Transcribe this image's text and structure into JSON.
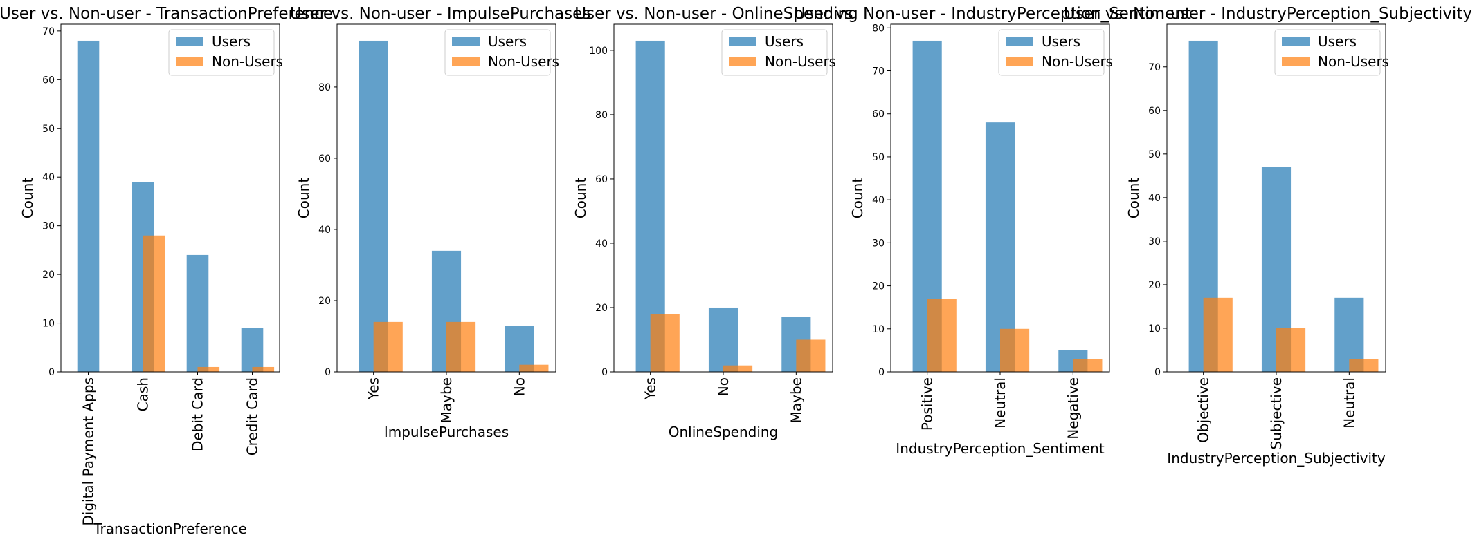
{
  "series_colors": {
    "users": "#1f77b4",
    "non_users": "#ff7f0e"
  },
  "chart_data": [
    {
      "type": "bar",
      "title": "User vs. Non-user - TransactionPreference",
      "xlabel": "TransactionPreference",
      "ylabel": "Count",
      "categories": [
        "Digital Payment Apps",
        "Cash",
        "Debit Card",
        "Credit Card"
      ],
      "series": [
        {
          "name": "Users",
          "values": [
            68,
            39,
            24,
            9
          ]
        },
        {
          "name": "Non-Users",
          "values": [
            0,
            28,
            1,
            1
          ]
        }
      ],
      "ylim": [
        0,
        71.4
      ],
      "yticks": [
        "0",
        "10",
        "20",
        "30",
        "40",
        "50",
        "60",
        "70"
      ],
      "legend": "top-right"
    },
    {
      "type": "bar",
      "title": "User vs. Non-user - ImpulsePurchases",
      "xlabel": "ImpulsePurchases",
      "ylabel": "Count",
      "categories": [
        "Yes",
        "Maybe",
        "No"
      ],
      "series": [
        {
          "name": "Users",
          "values": [
            93,
            34,
            13
          ]
        },
        {
          "name": "Non-Users",
          "values": [
            14,
            14,
            2
          ]
        }
      ],
      "ylim": [
        0,
        97.65
      ],
      "yticks": [
        "0",
        "20",
        "40",
        "60",
        "80"
      ],
      "legend": "top-right"
    },
    {
      "type": "bar",
      "title": "User vs. Non-user - OnlineSpending",
      "xlabel": "OnlineSpending",
      "ylabel": "Count",
      "categories": [
        "Yes",
        "No",
        "Maybe"
      ],
      "series": [
        {
          "name": "Users",
          "values": [
            103,
            20,
            17
          ]
        },
        {
          "name": "Non-Users",
          "values": [
            18,
            2,
            10
          ]
        }
      ],
      "ylim": [
        0,
        108.15
      ],
      "yticks": [
        "0",
        "20",
        "40",
        "60",
        "80",
        "100"
      ],
      "legend": "top-right"
    },
    {
      "type": "bar",
      "title": "User vs. Non-user - IndustryPerception_Sentiment",
      "xlabel": "IndustryPerception_Sentiment",
      "ylabel": "Count",
      "categories": [
        "Positive",
        "Neutral",
        "Negative"
      ],
      "series": [
        {
          "name": "Users",
          "values": [
            77,
            58,
            5
          ]
        },
        {
          "name": "Non-Users",
          "values": [
            17,
            10,
            3
          ]
        }
      ],
      "ylim": [
        0,
        80.85
      ],
      "yticks": [
        "0",
        "10",
        "20",
        "30",
        "40",
        "50",
        "60",
        "70",
        "80"
      ],
      "legend": "top-right"
    },
    {
      "type": "bar",
      "title": "User vs. Non-user - IndustryPerception_Subjectivity",
      "xlabel": "IndustryPerception_Subjectivity",
      "ylabel": "Count",
      "categories": [
        "Objective",
        "Subjective",
        "Neutral"
      ],
      "series": [
        {
          "name": "Users",
          "values": [
            76,
            47,
            17
          ]
        },
        {
          "name": "Non-Users",
          "values": [
            17,
            10,
            3
          ]
        }
      ],
      "ylim": [
        0,
        79.8
      ],
      "yticks": [
        "0",
        "10",
        "20",
        "30",
        "40",
        "50",
        "60",
        "70"
      ],
      "legend": "top-right"
    }
  ]
}
